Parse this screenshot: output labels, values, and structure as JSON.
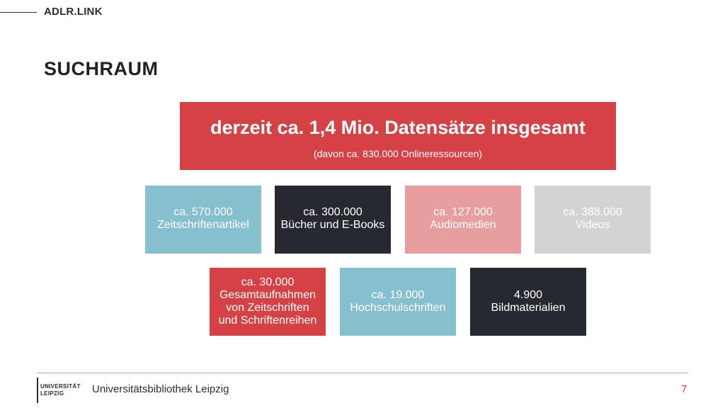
{
  "header": {
    "brand": "ADLR.LINK",
    "title": "SUCHRAUM"
  },
  "summary": {
    "headline": "derzeit ca. 1,4 Mio. Datensätze insgesamt",
    "subline": "(davon ca. 830.000 Onlineressourcen)"
  },
  "stats": [
    {
      "count": "ca. 570.000",
      "label": [
        "Zeitschriftenartikel"
      ]
    },
    {
      "count": "ca. 300.000",
      "label": [
        "Bücher und E-Books"
      ]
    },
    {
      "count": "ca. 127.000",
      "label": [
        "Audiomedien"
      ]
    },
    {
      "count": "ca. 388.000",
      "label": [
        "Videos"
      ]
    },
    {
      "count": "ca. 30.000",
      "label": [
        "Gesamtaufnahmen",
        "von Zeitschriften",
        "und Schriftenreihen"
      ]
    },
    {
      "count": "ca. 19.000",
      "label": [
        "Hochschulschriften"
      ]
    },
    {
      "count": "4.900",
      "label": [
        "Bildmaterialien"
      ]
    }
  ],
  "colors": {
    "red": "#d54144",
    "blue": "#86bfce",
    "dark": "#262a30",
    "pink": "#e89d9f",
    "grey": "#d3d3d3"
  },
  "footer": {
    "logo_line1": "UNIVERSITÄT",
    "logo_line2": "LEIPZIG",
    "institution": "Universitätsbibliothek Leipzig",
    "page_number": "7"
  }
}
